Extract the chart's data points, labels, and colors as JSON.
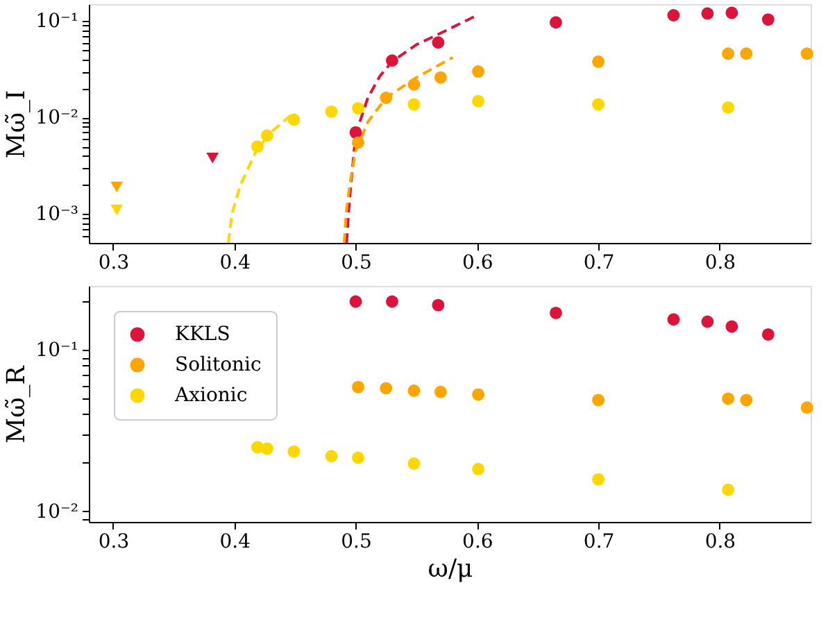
{
  "chart_data": [
    {
      "type": "scatter",
      "ylabel": "Mω̃_I",
      "log": "y",
      "legend": false,
      "grid": false,
      "xlim": [
        0.28,
        0.875
      ],
      "xticks": [
        0.3,
        0.4,
        0.5,
        0.6,
        0.7,
        0.8
      ],
      "ylim": [
        0.0005,
        0.15
      ],
      "yticks": [
        {
          "value": 0.001,
          "label": "10⁻³"
        },
        {
          "value": 0.01,
          "label": "10⁻²"
        },
        {
          "value": 0.1,
          "label": "10⁻¹"
        },
        {
          "value": 0.0006,
          "label": null
        },
        {
          "value": 0.0007,
          "label": null
        },
        {
          "value": 0.0008,
          "label": null
        },
        {
          "value": 0.0009,
          "label": null
        },
        {
          "value": 0.002,
          "label": null
        },
        {
          "value": 0.003,
          "label": null
        },
        {
          "value": 0.004,
          "label": null
        },
        {
          "value": 0.005,
          "label": null
        },
        {
          "value": 0.006,
          "label": null
        },
        {
          "value": 0.007,
          "label": null
        },
        {
          "value": 0.008,
          "label": null
        },
        {
          "value": 0.009,
          "label": null
        },
        {
          "value": 0.02,
          "label": null
        },
        {
          "value": 0.03,
          "label": null
        },
        {
          "value": 0.04,
          "label": null
        },
        {
          "value": 0.05,
          "label": null
        },
        {
          "value": 0.06,
          "label": null
        },
        {
          "value": 0.07,
          "label": null
        },
        {
          "value": 0.08,
          "label": null
        },
        {
          "value": 0.09,
          "label": null
        }
      ],
      "series": [
        {
          "type": "line",
          "line_style": "dashed",
          "color": "#dc143c",
          "x": [
            0.4925,
            0.494,
            0.496,
            0.499,
            0.502,
            0.51,
            0.52,
            0.53,
            0.55,
            0.57,
            0.6
          ],
          "values": [
            0.0005,
            0.001,
            0.002,
            0.005,
            0.008,
            0.016,
            0.027,
            0.038,
            0.057,
            0.075,
            0.115
          ]
        },
        {
          "type": "line",
          "line_style": "dashed",
          "color": "#ffa500",
          "x": [
            0.4905,
            0.492,
            0.495,
            0.5,
            0.51,
            0.525,
            0.55,
            0.58
          ],
          "values": [
            0.0005,
            0.001,
            0.002,
            0.0045,
            0.009,
            0.016,
            0.026,
            0.042
          ]
        },
        {
          "type": "line",
          "line_style": "dashed",
          "color": "#ffd700",
          "x": [
            0.395,
            0.398,
            0.405,
            0.418,
            0.43,
            0.45
          ],
          "values": [
            0.0005,
            0.001,
            0.002,
            0.0045,
            0.007,
            0.0115
          ]
        },
        {
          "marker": "circle",
          "color": "#dc143c",
          "x": [
            0.5,
            0.53,
            0.568,
            0.665,
            0.762,
            0.79,
            0.81,
            0.84
          ],
          "values": [
            0.007,
            0.039,
            0.06,
            0.097,
            0.115,
            0.12,
            0.122,
            0.104
          ]
        },
        {
          "marker": "circle",
          "color": "#ffa500",
          "x": [
            0.502,
            0.525,
            0.548,
            0.57,
            0.601,
            0.7,
            0.807,
            0.822,
            0.872
          ],
          "values": [
            0.0055,
            0.016,
            0.022,
            0.026,
            0.03,
            0.038,
            0.046,
            0.046,
            0.046
          ]
        },
        {
          "marker": "circle",
          "color": "#ffd700",
          "x": [
            0.419,
            0.427,
            0.449,
            0.48,
            0.502,
            0.548,
            0.601,
            0.7,
            0.807
          ],
          "values": [
            0.005,
            0.0065,
            0.0095,
            0.0115,
            0.0125,
            0.0137,
            0.0148,
            0.0137,
            0.0127
          ]
        },
        {
          "marker": "triangle",
          "color": "#dc143c",
          "x": [
            0.382
          ],
          "values": [
            0.0038
          ]
        },
        {
          "marker": "triangle",
          "color": "#ffa500",
          "x": [
            0.303
          ],
          "values": [
            0.0019
          ]
        },
        {
          "marker": "triangle",
          "color": "#ffd700",
          "x": [
            0.303
          ],
          "values": [
            0.0011
          ]
        }
      ]
    },
    {
      "type": "scatter",
      "xlabel": "ω/μ",
      "ylabel": "Mω̃_R",
      "log": "y",
      "legend": "top left",
      "grid": false,
      "xlim": [
        0.28,
        0.875
      ],
      "xticks": [
        0.3,
        0.4,
        0.5,
        0.6,
        0.7,
        0.8
      ],
      "ylim": [
        0.0086,
        0.25
      ],
      "yticks": [
        {
          "value": 0.01,
          "label": "10⁻²"
        },
        {
          "value": 0.1,
          "label": "10⁻¹"
        },
        {
          "value": 0.009,
          "label": null
        },
        {
          "value": 0.02,
          "label": null
        },
        {
          "value": 0.03,
          "label": null
        },
        {
          "value": 0.04,
          "label": null
        },
        {
          "value": 0.05,
          "label": null
        },
        {
          "value": 0.06,
          "label": null
        },
        {
          "value": 0.07,
          "label": null
        },
        {
          "value": 0.08,
          "label": null
        },
        {
          "value": 0.09,
          "label": null
        },
        {
          "value": 0.2,
          "label": null
        }
      ],
      "series": [
        {
          "name": "KKLS",
          "marker": "circle",
          "color": "#dc143c",
          "x": [
            0.5,
            0.53,
            0.568,
            0.665,
            0.762,
            0.79,
            0.81,
            0.84
          ],
          "values": [
            0.2,
            0.2,
            0.19,
            0.17,
            0.155,
            0.15,
            0.14,
            0.125
          ]
        },
        {
          "name": "Solitonic",
          "marker": "circle",
          "color": "#ffa500",
          "x": [
            0.502,
            0.525,
            0.548,
            0.57,
            0.601,
            0.7,
            0.807,
            0.822,
            0.872
          ],
          "values": [
            0.059,
            0.058,
            0.056,
            0.055,
            0.053,
            0.049,
            0.05,
            0.049,
            0.044
          ]
        },
        {
          "name": "Axionic",
          "marker": "circle",
          "color": "#ffd700",
          "x": [
            0.419,
            0.427,
            0.449,
            0.48,
            0.502,
            0.548,
            0.601,
            0.7,
            0.807
          ],
          "values": [
            0.025,
            0.0245,
            0.0235,
            0.022,
            0.0215,
            0.0198,
            0.0183,
            0.0158,
            0.0136
          ]
        }
      ]
    }
  ]
}
